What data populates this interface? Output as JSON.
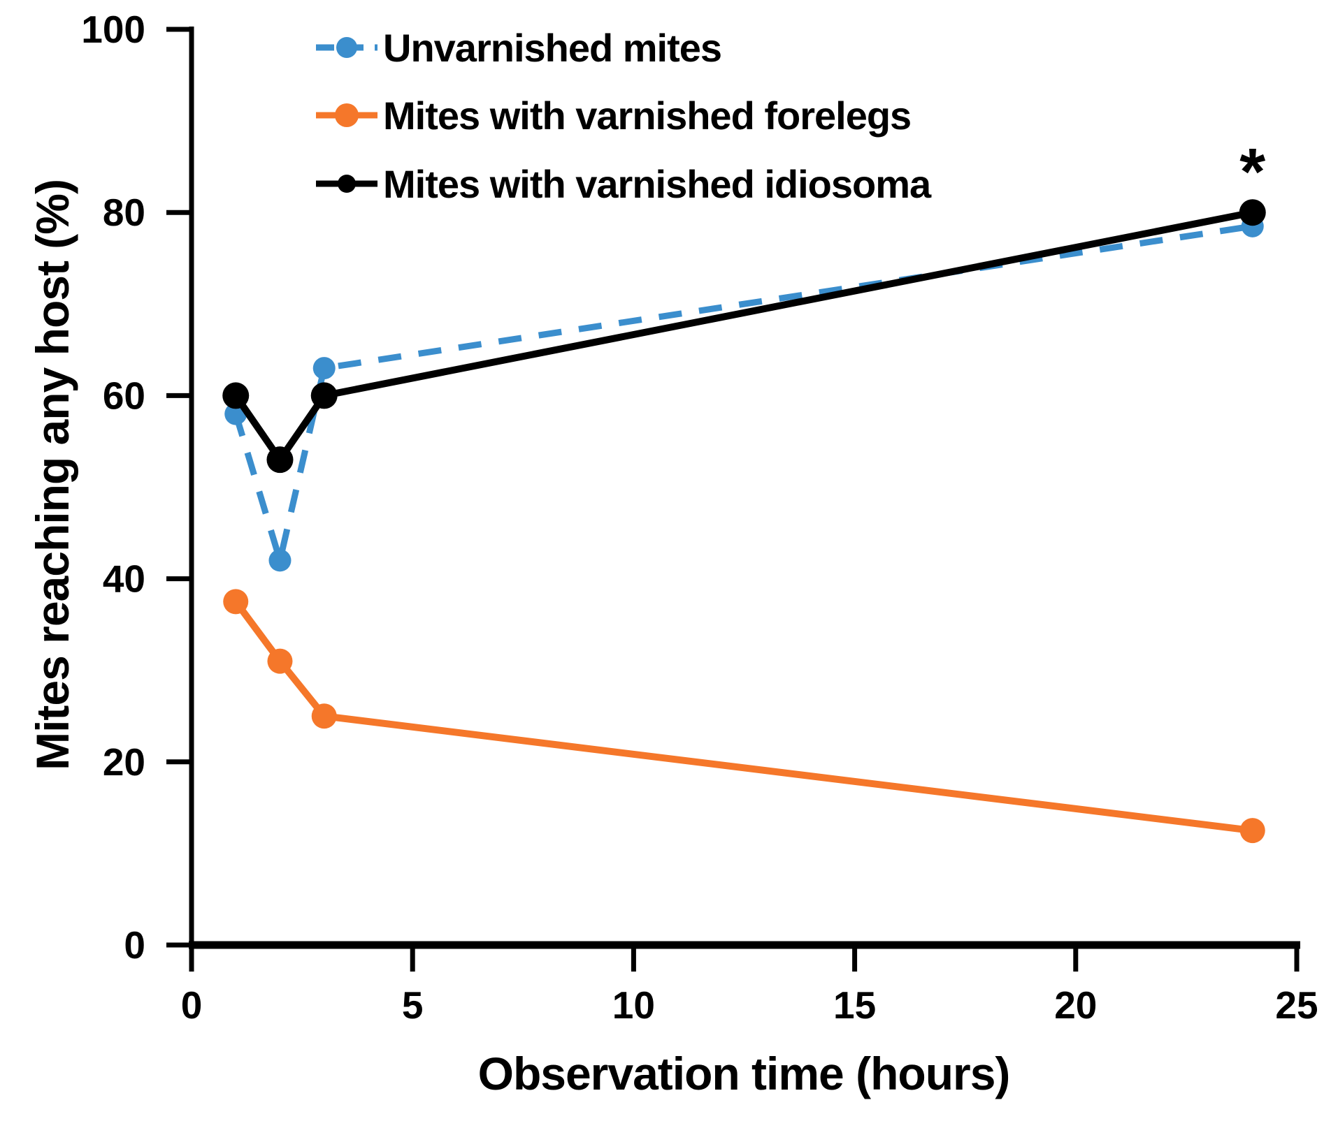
{
  "figure": {
    "background": "#ffffff",
    "axis_color": "#000000",
    "text_color": "#000000"
  },
  "chart_data": {
    "type": "line",
    "title": "",
    "xlabel": "Observation time (hours)",
    "ylabel": "Mites reaching any host (%)",
    "xlim": [
      0,
      25
    ],
    "ylim": [
      0,
      100
    ],
    "x_ticks": [
      0,
      5,
      10,
      15,
      20,
      25
    ],
    "y_ticks": [
      0,
      20,
      40,
      60,
      80,
      100
    ],
    "grid": false,
    "legend_position": "upper-left-inside",
    "x": [
      1,
      2,
      3,
      24
    ],
    "series": [
      {
        "name": "Unvarnished mites",
        "color": "#3b8ecd",
        "line_style": "dashed",
        "marker": "circle",
        "values": [
          58,
          42,
          63,
          78.5
        ]
      },
      {
        "name": "Mites with varnished forelegs",
        "color": "#f5772a",
        "line_style": "solid",
        "marker": "circle",
        "values": [
          37.5,
          31,
          25,
          12.5
        ]
      },
      {
        "name": "Mites with varnished idiosoma",
        "color": "#000000",
        "line_style": "solid",
        "marker": "circle",
        "values": [
          60,
          53,
          60,
          80
        ]
      }
    ],
    "annotations": [
      {
        "text": "*",
        "x": 24,
        "y": 82,
        "color": "#000000"
      }
    ]
  }
}
